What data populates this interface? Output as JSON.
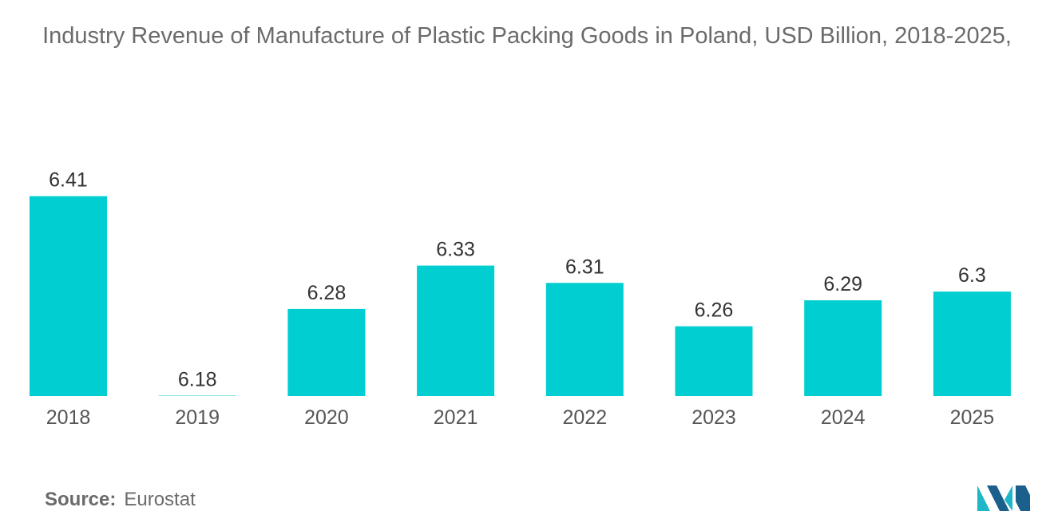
{
  "chart_data": {
    "type": "bar",
    "title": "Industry Revenue of Manufacture of Plastic Packing Goods in Poland, USD Billion, 2018-2025,",
    "categories": [
      "2018",
      "2019",
      "2020",
      "2021",
      "2022",
      "2023",
      "2024",
      "2025"
    ],
    "values": [
      6.41,
      6.18,
      6.28,
      6.33,
      6.31,
      6.26,
      6.29,
      6.3
    ],
    "value_labels": [
      "6.41",
      "6.18",
      "6.28",
      "6.33",
      "6.31",
      "6.26",
      "6.29",
      "6.3"
    ],
    "xlabel": "",
    "ylabel": "",
    "grid": false,
    "bar_color": "#00CED1",
    "label_color": "#333333",
    "tick_color": "#555555"
  },
  "source": {
    "label": "Source:",
    "value": "Eurostat"
  },
  "logo": {
    "icon": "mordor-intelligence-logo-icon",
    "colors": [
      "#1FB7C7",
      "#1B5F8C"
    ]
  }
}
